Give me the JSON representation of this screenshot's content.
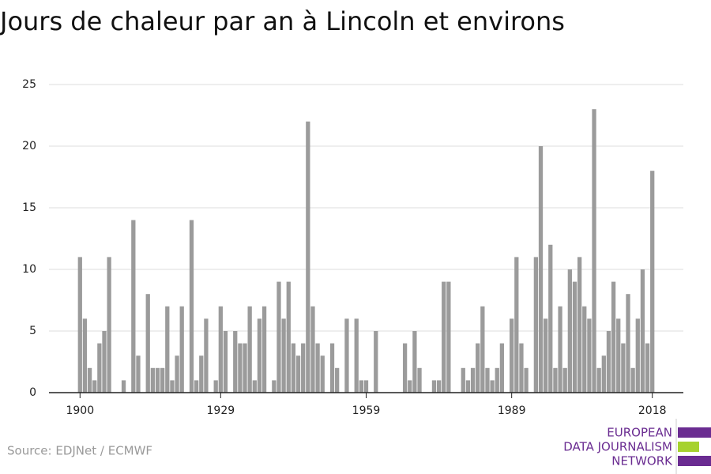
{
  "chart_data": {
    "type": "bar",
    "title": "Jours de chaleur par an à Lincoln et environs",
    "source": "Source: EDJNet / ECMWF",
    "logo": [
      "EUROPEAN",
      "DATA JOURNALISM",
      "NETWORK"
    ],
    "color": "#9b9b9b",
    "grid": true,
    "x": [
      1900,
      1901,
      1902,
      1903,
      1904,
      1905,
      1906,
      1907,
      1908,
      1909,
      1910,
      1911,
      1912,
      1913,
      1914,
      1915,
      1916,
      1917,
      1918,
      1919,
      1920,
      1921,
      1922,
      1923,
      1924,
      1925,
      1926,
      1927,
      1928,
      1929,
      1930,
      1931,
      1932,
      1933,
      1934,
      1935,
      1936,
      1937,
      1938,
      1939,
      1940,
      1941,
      1942,
      1943,
      1944,
      1945,
      1946,
      1947,
      1948,
      1949,
      1950,
      1951,
      1952,
      1953,
      1954,
      1955,
      1956,
      1957,
      1958,
      1959,
      1960,
      1961,
      1962,
      1963,
      1964,
      1965,
      1966,
      1967,
      1968,
      1969,
      1970,
      1971,
      1972,
      1973,
      1974,
      1975,
      1976,
      1977,
      1978,
      1979,
      1980,
      1981,
      1982,
      1983,
      1984,
      1985,
      1986,
      1987,
      1988,
      1989,
      1990,
      1991,
      1992,
      1993,
      1994,
      1995,
      1996,
      1997,
      1998,
      1999,
      2000,
      2001,
      2002,
      2003,
      2004,
      2005,
      2006,
      2007,
      2008,
      2009,
      2010,
      2011,
      2012,
      2013,
      2014,
      2015,
      2016,
      2017,
      2018
    ],
    "values": [
      11,
      6,
      2,
      1,
      4,
      5,
      11,
      0,
      0,
      1,
      0,
      14,
      3,
      0,
      8,
      2,
      2,
      2,
      7,
      1,
      3,
      7,
      0,
      14,
      1,
      3,
      6,
      0,
      1,
      7,
      5,
      0,
      5,
      4,
      4,
      7,
      1,
      6,
      7,
      0,
      1,
      9,
      6,
      9,
      4,
      3,
      4,
      22,
      7,
      4,
      3,
      0,
      4,
      2,
      0,
      6,
      0,
      6,
      1,
      1,
      0,
      5,
      0,
      0,
      0,
      0,
      0,
      4,
      1,
      5,
      2,
      0,
      0,
      1,
      1,
      9,
      9,
      0,
      0,
      2,
      1,
      2,
      4,
      7,
      2,
      1,
      2,
      4,
      0,
      6,
      11,
      4,
      2,
      0,
      11,
      20,
      6,
      12,
      2,
      7,
      2,
      10,
      9,
      11,
      7,
      6,
      23,
      2,
      3,
      5,
      9,
      6,
      4,
      8,
      2,
      6,
      10,
      4,
      18
    ],
    "xlim": [
      1893.6,
      2024.4
    ],
    "xticks": [
      1900,
      1929,
      1959,
      1989,
      2018
    ],
    "ylim": [
      0,
      25
    ],
    "yticks": [
      0,
      5,
      10,
      15,
      20,
      25
    ]
  }
}
